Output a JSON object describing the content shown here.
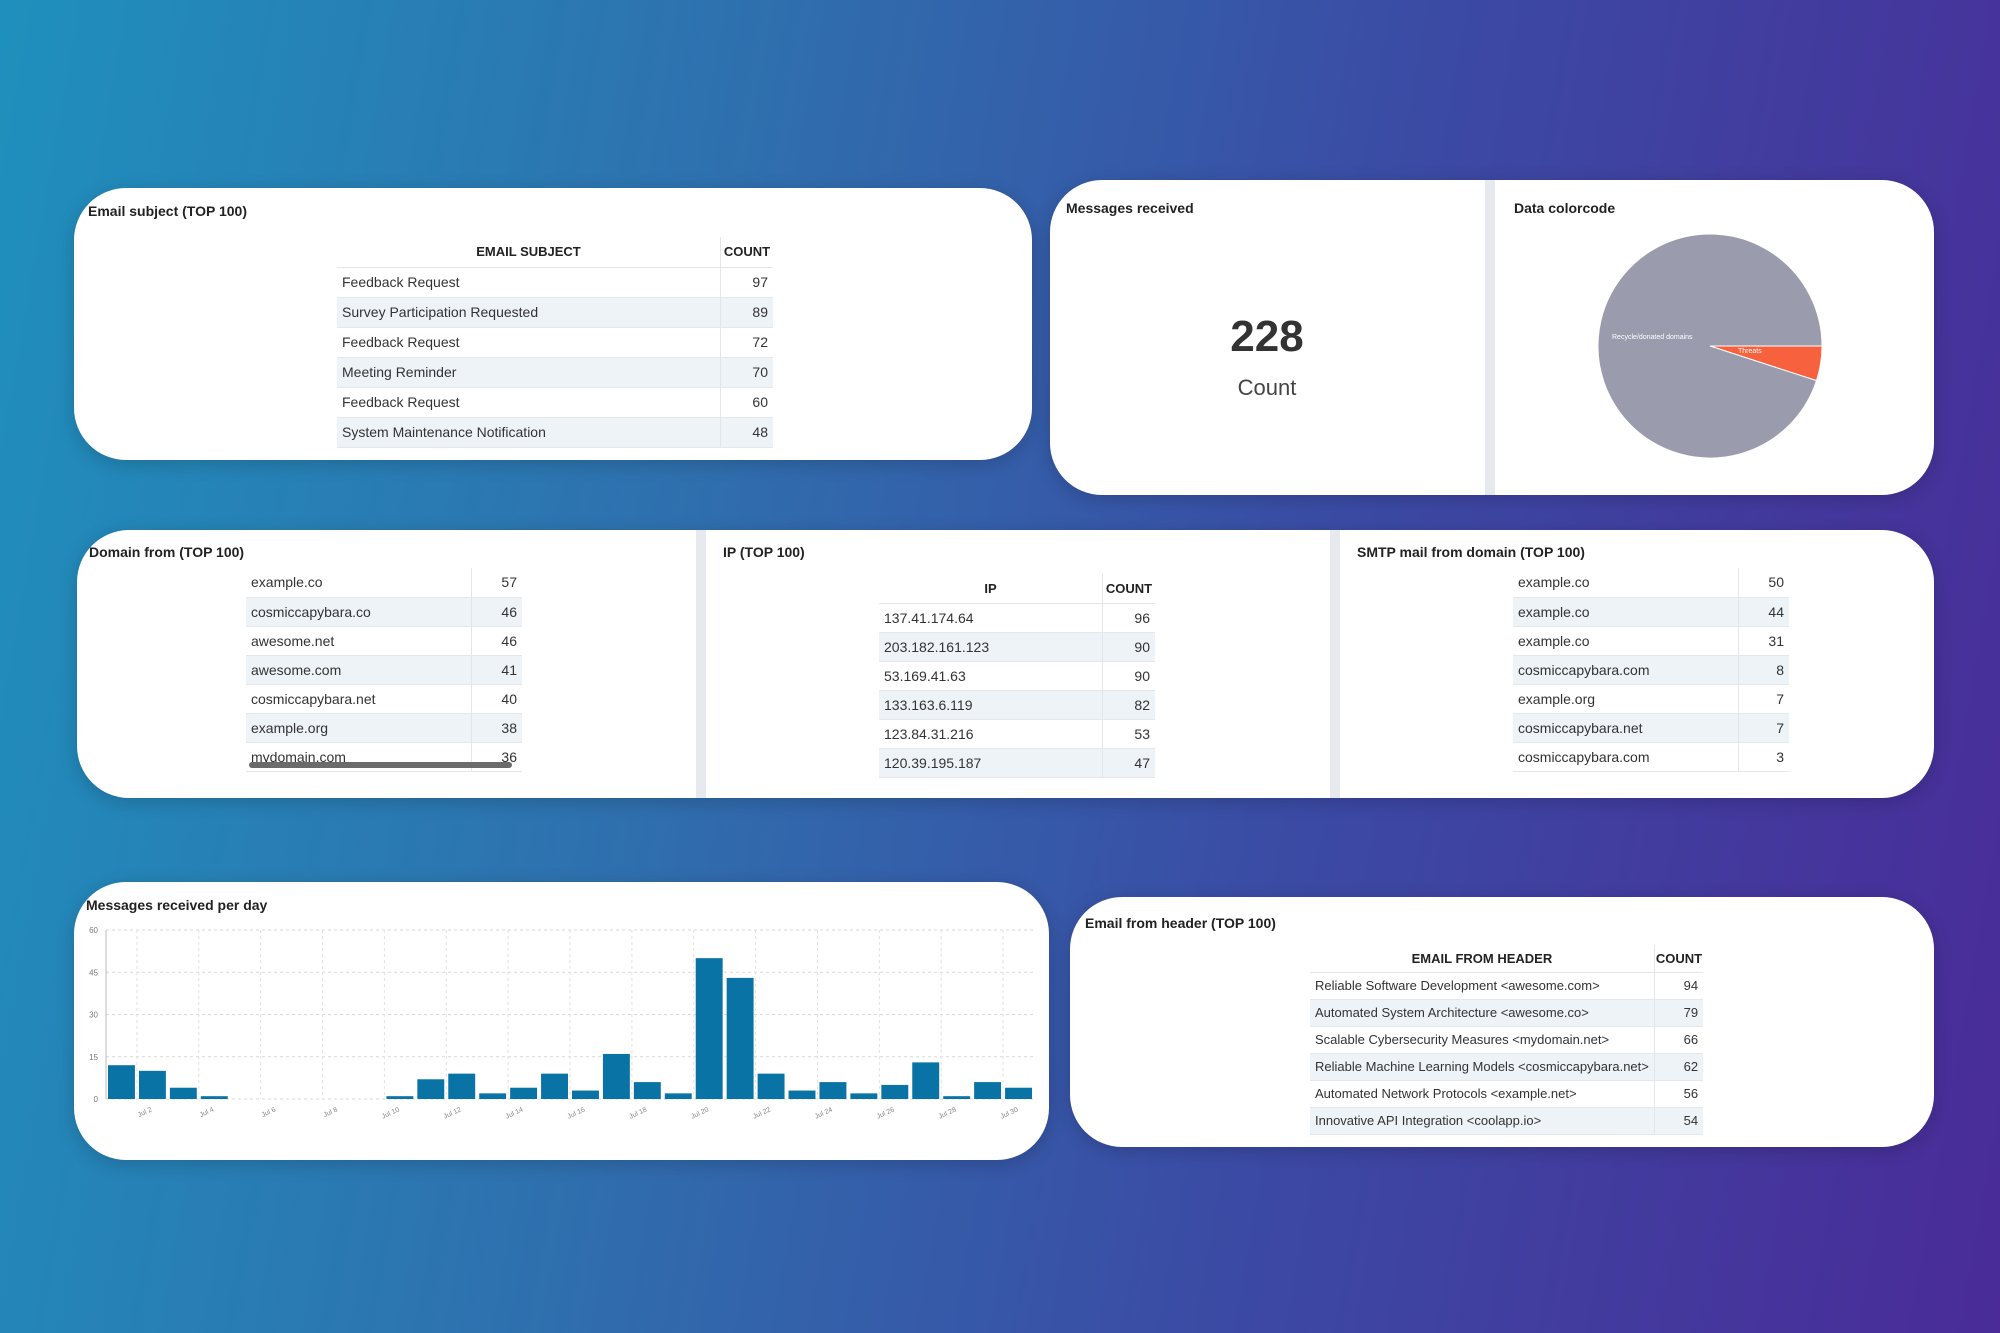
{
  "email_subject": {
    "title": "Email subject (TOP 100)",
    "columns": [
      "EMAIL SUBJECT",
      "COUNT"
    ],
    "rows": [
      [
        "Feedback Request",
        "97"
      ],
      [
        "Survey Participation Requested",
        "89"
      ],
      [
        "Feedback Request",
        "72"
      ],
      [
        "Meeting Reminder",
        "70"
      ],
      [
        "Feedback Request",
        "60"
      ],
      [
        "System Maintenance Notification",
        "48"
      ]
    ]
  },
  "messages_received": {
    "title": "Messages received",
    "value": "228",
    "label": "Count"
  },
  "data_colorcode": {
    "title": "Data colorcode",
    "chart_data": {
      "type": "pie",
      "slices": [
        {
          "label": "Recycle/donated domains",
          "value": 95,
          "color": "#9a9cae"
        },
        {
          "label": "Threats",
          "value": 5,
          "color": "#f7613d"
        }
      ]
    }
  },
  "domain_from": {
    "title": "Domain from (TOP 100)",
    "rows": [
      [
        "example.co",
        "57"
      ],
      [
        "cosmiccapybara.co",
        "46"
      ],
      [
        "awesome.net",
        "46"
      ],
      [
        "awesome.com",
        "41"
      ],
      [
        "cosmiccapybara.net",
        "40"
      ],
      [
        "example.org",
        "38"
      ],
      [
        "mydomain.com",
        "36"
      ]
    ]
  },
  "ip": {
    "title": "IP (TOP 100)",
    "columns": [
      "IP",
      "COUNT"
    ],
    "rows": [
      [
        "137.41.174.64",
        "96"
      ],
      [
        "203.182.161.123",
        "90"
      ],
      [
        "53.169.41.63",
        "90"
      ],
      [
        "133.163.6.119",
        "82"
      ],
      [
        "123.84.31.216",
        "53"
      ],
      [
        "120.39.195.187",
        "47"
      ]
    ]
  },
  "smtp_mail_from": {
    "title": "SMTP mail from domain (TOP 100)",
    "rows": [
      [
        "example.co",
        "50"
      ],
      [
        "example.co",
        "44"
      ],
      [
        "example.co",
        "31"
      ],
      [
        "cosmiccapybara.com",
        "8"
      ],
      [
        "example.org",
        "7"
      ],
      [
        "cosmiccapybara.net",
        "7"
      ],
      [
        "cosmiccapybara.com",
        "3"
      ]
    ]
  },
  "messages_per_day": {
    "title": "Messages received per day",
    "chart_data": {
      "type": "bar",
      "color": "#0a73a6",
      "categories": [
        "Jul 1",
        "Jul 2",
        "Jul 3",
        "Jul 4",
        "Jul 5",
        "Jul 6",
        "Jul 7",
        "Jul 8",
        "Jul 9",
        "Jul 10",
        "Jul 11",
        "Jul 12",
        "Jul 13",
        "Jul 14",
        "Jul 15",
        "Jul 16",
        "Jul 17",
        "Jul 18",
        "Jul 19",
        "Jul 20",
        "Jul 21",
        "Jul 22",
        "Jul 23",
        "Jul 24",
        "Jul 25",
        "Jul 26",
        "Jul 27",
        "Jul 28",
        "Jul 29",
        "Jul 30"
      ],
      "values": [
        12,
        10,
        4,
        1,
        0,
        0,
        0,
        0,
        0,
        1,
        7,
        9,
        2,
        4,
        9,
        3,
        16,
        6,
        2,
        50,
        43,
        9,
        3,
        6,
        2,
        5,
        13,
        1,
        6,
        4
      ],
      "tick_labels": [
        "Jul 2",
        "Jul 4",
        "Jul 6",
        "Jul 8",
        "Jul 10",
        "Jul 12",
        "Jul 14",
        "Jul 16",
        "Jul 18",
        "Jul 20",
        "Jul 22",
        "Jul 24",
        "Jul 26",
        "Jul 28",
        "Jul 30"
      ],
      "yticks": [
        "0",
        "15",
        "30",
        "45",
        "60"
      ],
      "ylim": [
        0,
        60
      ],
      "grid": true
    }
  },
  "email_from_header": {
    "title": "Email from header (TOP 100)",
    "columns": [
      "EMAIL FROM HEADER",
      "COUNT"
    ],
    "rows": [
      [
        "Reliable Software Development <awesome.com>",
        "94"
      ],
      [
        "Automated System Architecture <awesome.co>",
        "79"
      ],
      [
        "Scalable Cybersecurity Measures <mydomain.net>",
        "66"
      ],
      [
        "Reliable Machine Learning Models <cosmiccapybara.net>",
        "62"
      ],
      [
        "Automated Network Protocols <example.net>",
        "56"
      ],
      [
        "Innovative API Integration <coolapp.io>",
        "54"
      ]
    ]
  }
}
